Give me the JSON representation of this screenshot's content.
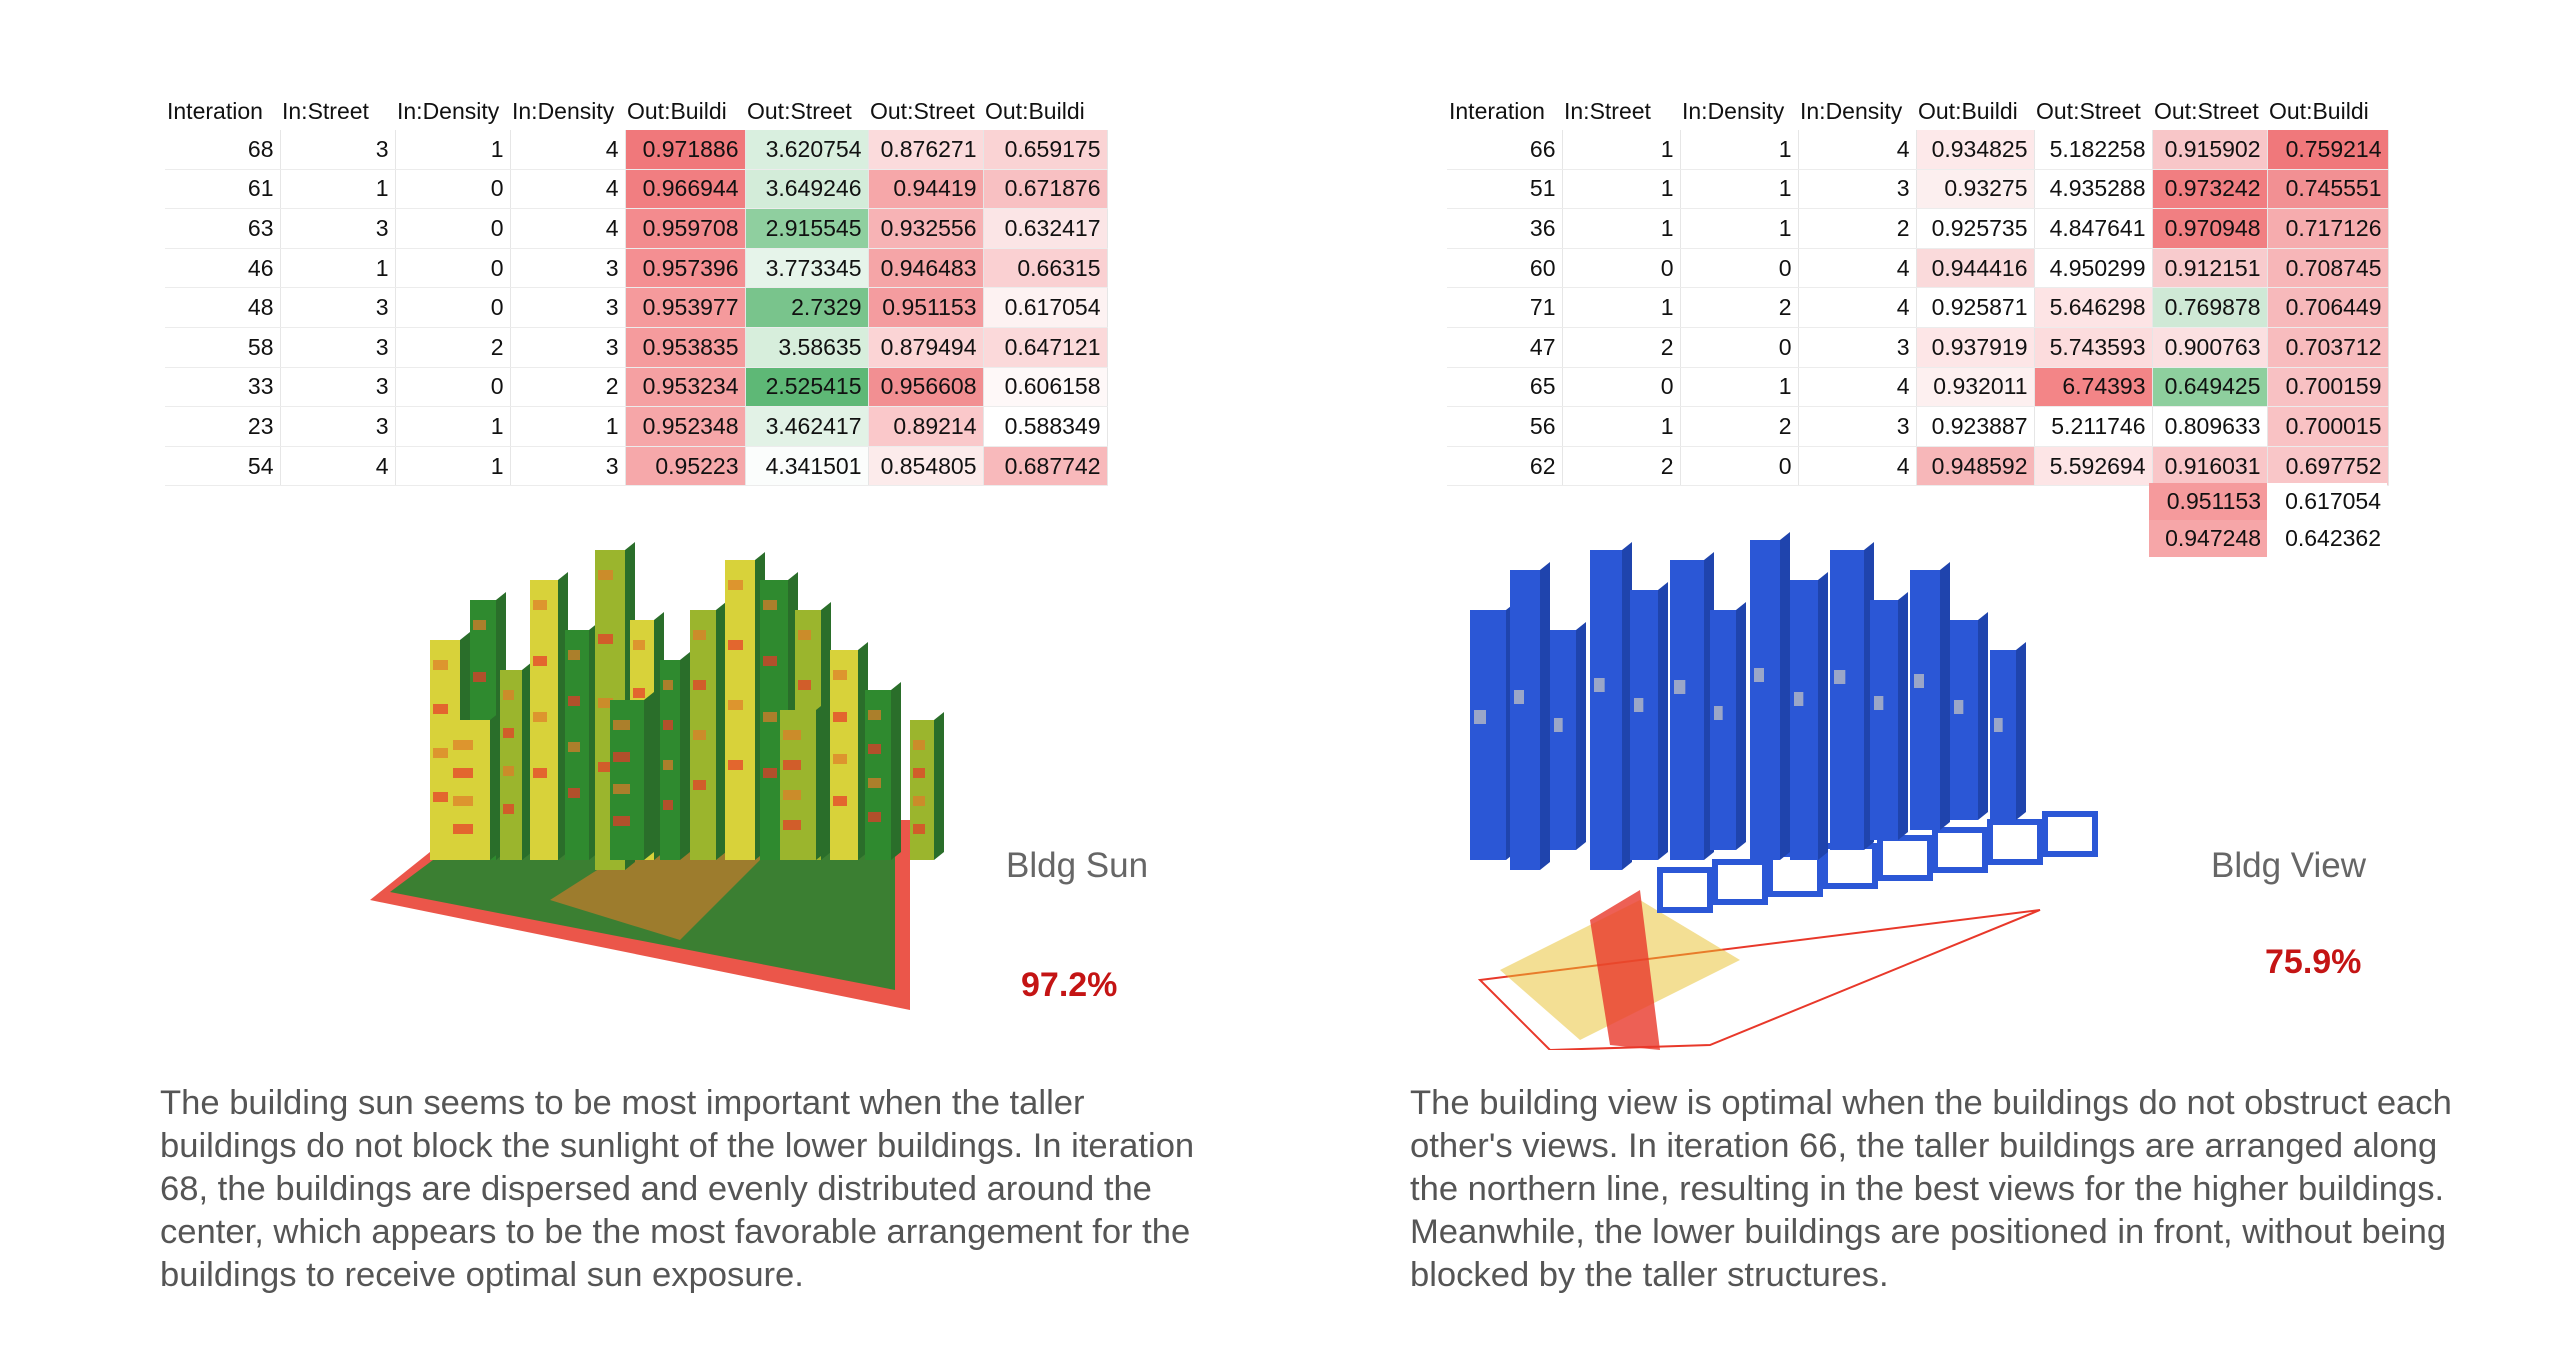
{
  "left": {
    "table": {
      "headers": [
        "Interation",
        "In:Street",
        "In:Density",
        "In:Density",
        "Out:Buildi",
        "Out:Street",
        "Out:Street",
        "Out:Buildi"
      ],
      "rows": [
        [
          "68",
          "3",
          "1",
          "4",
          "0.971886",
          "3.620754",
          "0.876271",
          "0.659175"
        ],
        [
          "61",
          "1",
          "0",
          "4",
          "0.966944",
          "3.649246",
          "0.94419",
          "0.671876"
        ],
        [
          "63",
          "3",
          "0",
          "4",
          "0.959708",
          "2.915545",
          "0.932556",
          "0.632417"
        ],
        [
          "46",
          "1",
          "0",
          "3",
          "0.957396",
          "3.773345",
          "0.946483",
          "0.66315"
        ],
        [
          "48",
          "3",
          "0",
          "3",
          "0.953977",
          "2.7329",
          "0.951153",
          "0.617054"
        ],
        [
          "58",
          "3",
          "2",
          "3",
          "0.953835",
          "3.58635",
          "0.879494",
          "0.647121"
        ],
        [
          "33",
          "3",
          "0",
          "2",
          "0.953234",
          "2.525415",
          "0.956608",
          "0.606158"
        ],
        [
          "23",
          "3",
          "1",
          "1",
          "0.952348",
          "3.462417",
          "0.89214",
          "0.588349"
        ],
        [
          "54",
          "4",
          "1",
          "3",
          "0.95223",
          "4.341501",
          "0.854805",
          "0.687742"
        ]
      ],
      "cell_colors": [
        [
          "",
          "",
          "",
          "",
          "#f0787b",
          "#d9efdf",
          "#fbdbdc",
          "#fad3d4"
        ],
        [
          "",
          "",
          "",
          "",
          "#f17e81",
          "#d3ecd9",
          "#f6a7a9",
          "#f8c0c2"
        ],
        [
          "",
          "",
          "",
          "",
          "#f38b8e",
          "#8fcf9f",
          "#f7b3b5",
          "#fbe5e6"
        ],
        [
          "",
          "",
          "",
          "",
          "#f48f92",
          "#e6f4ea",
          "#f5a5a7",
          "#fad0d2"
        ],
        [
          "",
          "",
          "",
          "",
          "#f59a9c",
          "#79c48c",
          "#f49c9f",
          "#fdf2f2"
        ],
        [
          "",
          "",
          "",
          "",
          "#f59b9d",
          "#d7eedc",
          "#fbd4d5",
          "#fbd9da"
        ],
        [
          "",
          "",
          "",
          "",
          "#f5a0a2",
          "#5eb876",
          "#f28f92",
          "#fef8f8"
        ],
        [
          "",
          "",
          "",
          "",
          "#f6a6a8",
          "#e2f2e6",
          "#fac8ca",
          "#ffffff"
        ],
        [
          "",
          "",
          "",
          "",
          "#f6a8aa",
          "#fbfdfc",
          "#fcebeb",
          "#f8b9bb"
        ]
      ]
    },
    "metric_label": "Bldg Sun",
    "metric_value": "97.2%",
    "description": "The building sun seems to be most important when the taller buildings do not block the sunlight of the lower buildings. In iteration 68, the buildings are dispersed and evenly distributed around the center, which appears to be the most favorable arrangement for the buildings to receive optimal sun exposure.",
    "model_colors": {
      "building": "#2f8a2f",
      "highlight": "#d8d23a",
      "hot": "#e8382a",
      "warm": "#e07a2a"
    }
  },
  "right": {
    "table": {
      "headers": [
        "Interation",
        "In:Street",
        "In:Density",
        "In:Density",
        "Out:Buildi",
        "Out:Street",
        "Out:Street",
        "Out:Buildi"
      ],
      "rows": [
        [
          "66",
          "1",
          "1",
          "4",
          "0.934825",
          "5.182258",
          "0.915902",
          "0.759214"
        ],
        [
          "51",
          "1",
          "1",
          "3",
          "0.93275",
          "4.935288",
          "0.973242",
          "0.745551"
        ],
        [
          "36",
          "1",
          "1",
          "2",
          "0.925735",
          "4.847641",
          "0.970948",
          "0.717126"
        ],
        [
          "60",
          "0",
          "0",
          "4",
          "0.944416",
          "4.950299",
          "0.912151",
          "0.708745"
        ],
        [
          "71",
          "1",
          "2",
          "4",
          "0.925871",
          "5.646298",
          "0.769878",
          "0.706449"
        ],
        [
          "47",
          "2",
          "0",
          "3",
          "0.937919",
          "5.743593",
          "0.900763",
          "0.703712"
        ],
        [
          "65",
          "0",
          "1",
          "4",
          "0.932011",
          "6.74393",
          "0.649425",
          "0.700159"
        ],
        [
          "56",
          "1",
          "2",
          "3",
          "0.923887",
          "5.211746",
          "0.809633",
          "0.700015"
        ],
        [
          "62",
          "2",
          "0",
          "4",
          "0.948592",
          "5.592694",
          "0.916031",
          "0.697752"
        ]
      ],
      "cell_colors": [
        [
          "",
          "",
          "",
          "",
          "#fde9ea",
          "#ffffff",
          "#f8c6c8",
          "#f0787b"
        ],
        [
          "",
          "",
          "",
          "",
          "#fcefef",
          "#ffffff",
          "#f17e81",
          "#f29093"
        ],
        [
          "",
          "",
          "",
          "",
          "#ffffff",
          "#ffffff",
          "#f17f82",
          "#f6acae"
        ],
        [
          "",
          "",
          "",
          "",
          "#fadadb",
          "#ffffff",
          "#f8cbcd",
          "#f7b6b8"
        ],
        [
          "",
          "",
          "",
          "",
          "#ffffff",
          "#fde4e5",
          "#cfe9d6",
          "#f7b9bb"
        ],
        [
          "",
          "",
          "",
          "",
          "#fde6e7",
          "#fcdcdd",
          "#fbe0e1",
          "#f8bcbe"
        ],
        [
          "",
          "",
          "",
          "",
          "#fdf0f0",
          "#f38587",
          "#8ecf9e",
          "#f8c1c3"
        ],
        [
          "",
          "",
          "",
          "",
          "#ffffff",
          "#ffffff",
          "#ffffff",
          "#f9c2c4"
        ],
        [
          "",
          "",
          "",
          "",
          "#f7b7b9",
          "#fde5e6",
          "#f9c6c8",
          "#f9c6c8"
        ]
      ]
    },
    "extra_rows": [
      [
        "0.951153",
        "0.617054"
      ],
      [
        "0.947248",
        "0.642362"
      ]
    ],
    "extra_colors": [
      [
        "#f59a9c",
        "#ffffff"
      ],
      [
        "#f6a6a8",
        "#ffffff"
      ]
    ],
    "metric_label": "Bldg View",
    "metric_value": "75.9%",
    "description": "The building view is optimal when the buildings do not obstruct each other's views. In iteration 66, the taller buildings are arranged along the northern line, resulting in the best views for the higher buildings. Meanwhile, the lower buildings are positioned in front, without being blocked by the taller structures.",
    "model_colors": {
      "building": "#2b57d6",
      "light": "#9aa6c8",
      "hot": "#e8382a",
      "warm": "#e8c02a"
    }
  }
}
